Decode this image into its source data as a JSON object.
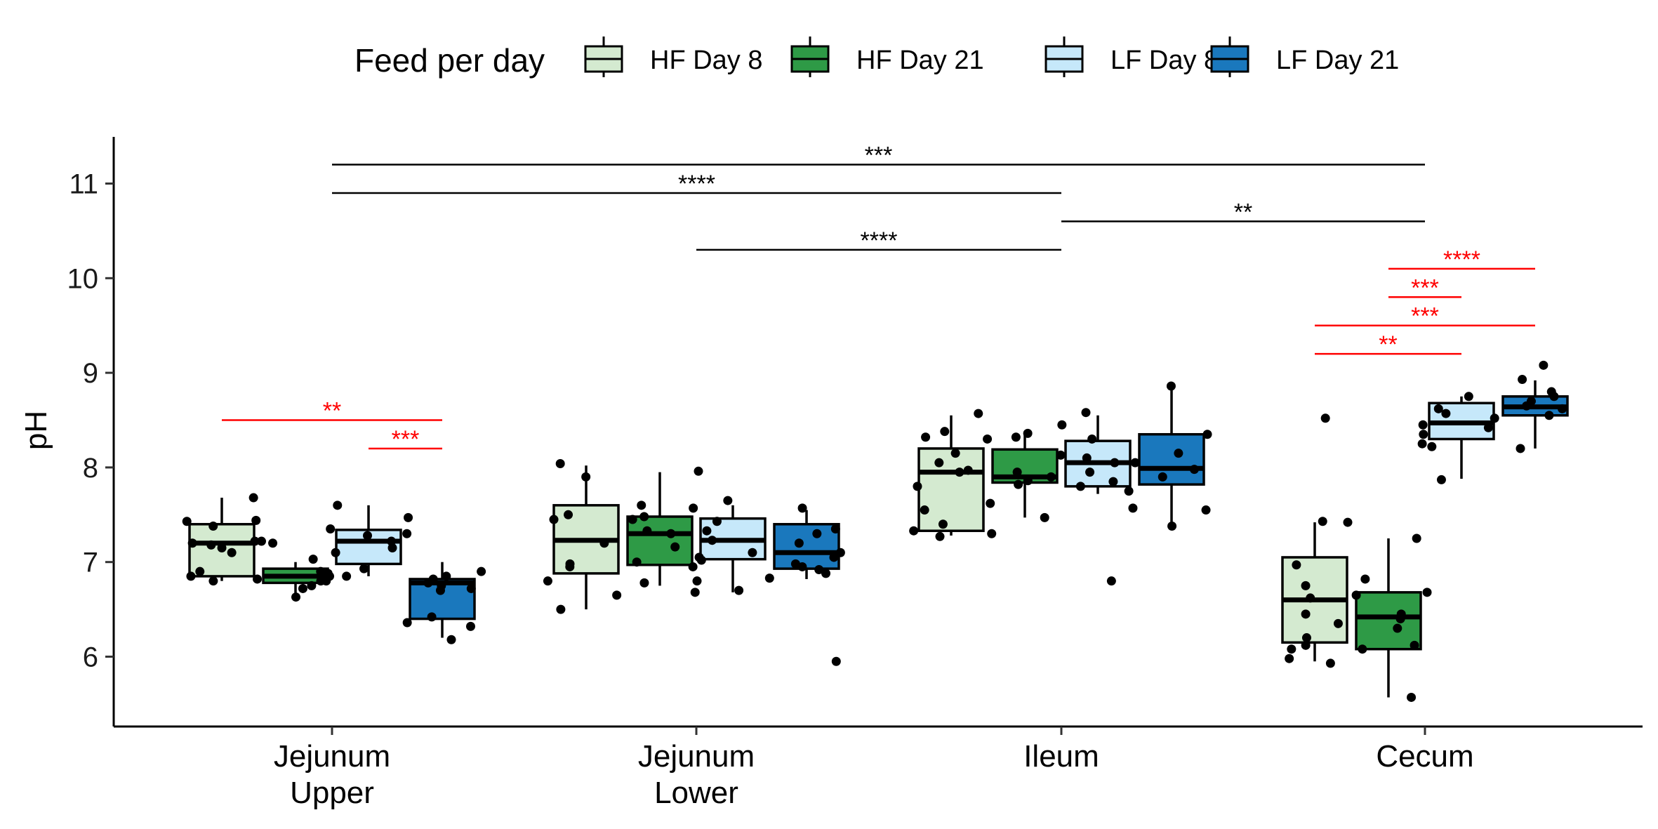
{
  "chart_data": {
    "type": "box",
    "title": "",
    "xlabel": "",
    "ylabel": "pH",
    "ylim": [
      5.3,
      11.5
    ],
    "yticks": [
      6,
      7,
      8,
      9,
      10,
      11
    ],
    "grid": false,
    "legend": {
      "title": "Feed per day",
      "placement": "top"
    },
    "categories": [
      {
        "lines": [
          "Jejunum",
          "Upper"
        ]
      },
      {
        "lines": [
          "Jejunum",
          "Lower"
        ]
      },
      {
        "lines": [
          "Ileum"
        ]
      },
      {
        "lines": [
          "Cecum"
        ]
      }
    ],
    "series": [
      {
        "name": "HF Day 8",
        "color": "#d4ead0",
        "boxes": [
          {
            "min": 6.8,
            "q1": 6.85,
            "median": 7.2,
            "q3": 7.4,
            "max": 7.68,
            "points": [
              7.68,
              7.44,
              7.43,
              7.38,
              7.22,
              7.2,
              7.18,
              7.15,
              7.1,
              6.9,
              6.85,
              6.82,
              6.8
            ]
          },
          {
            "min": 6.5,
            "q1": 6.88,
            "median": 7.23,
            "q3": 7.6,
            "max": 8.02,
            "points": [
              8.04,
              7.9,
              7.5,
              7.45,
              7.2,
              6.98,
              6.95,
              6.8,
              6.65,
              6.5
            ]
          },
          {
            "min": 7.28,
            "q1": 7.33,
            "median": 7.95,
            "q3": 8.2,
            "max": 8.55,
            "points": [
              8.57,
              8.38,
              8.32,
              8.15,
              8.05,
              7.97,
              7.95,
              7.8,
              7.55,
              7.4,
              7.33,
              7.3,
              7.27
            ]
          },
          {
            "min": 5.95,
            "q1": 6.15,
            "median": 6.6,
            "q3": 7.05,
            "max": 7.42,
            "points": [
              8.52,
              7.43,
              7.42,
              6.97,
              6.75,
              6.62,
              6.45,
              6.35,
              6.2,
              6.12,
              6.08,
              5.98,
              5.93
            ]
          }
        ]
      },
      {
        "name": "HF Day 21",
        "color": "#2e9a46",
        "boxes": [
          {
            "min": 6.66,
            "q1": 6.78,
            "median": 6.85,
            "q3": 6.93,
            "max": 7.0,
            "points": [
              7.22,
              7.2,
              7.03,
              6.9,
              6.85,
              6.8,
              6.8,
              6.75,
              6.72,
              6.63
            ]
          },
          {
            "min": 6.75,
            "q1": 6.97,
            "median": 7.3,
            "q3": 7.48,
            "max": 7.95,
            "points": [
              7.96,
              7.6,
              7.48,
              7.45,
              7.33,
              7.3,
              7.16,
              7.0,
              6.95,
              6.8,
              6.78
            ]
          },
          {
            "min": 7.47,
            "q1": 7.84,
            "median": 7.9,
            "q3": 8.19,
            "max": 8.35,
            "points": [
              8.36,
              8.32,
              8.3,
              8.13,
              7.95,
              7.9,
              7.86,
              7.82,
              7.62,
              7.47
            ]
          },
          {
            "min": 5.57,
            "q1": 6.08,
            "median": 6.42,
            "q3": 6.68,
            "max": 7.25,
            "points": [
              7.25,
              6.82,
              6.68,
              6.65,
              6.45,
              6.4,
              6.3,
              6.12,
              6.08,
              5.57
            ]
          }
        ]
      },
      {
        "name": "LF Day 8",
        "color": "#c6e8fa",
        "boxes": [
          {
            "min": 6.85,
            "q1": 6.98,
            "median": 7.22,
            "q3": 7.34,
            "max": 7.6,
            "points": [
              7.6,
              7.47,
              7.35,
              7.3,
              7.28,
              7.22,
              7.15,
              7.1,
              6.93,
              6.88,
              6.85
            ]
          },
          {
            "min": 6.68,
            "q1": 7.03,
            "median": 7.23,
            "q3": 7.46,
            "max": 7.6,
            "points": [
              7.65,
              7.57,
              7.43,
              7.33,
              7.23,
              7.1,
              7.05,
              7.02,
              6.83,
              6.7,
              6.68
            ]
          },
          {
            "min": 7.72,
            "q1": 7.8,
            "median": 8.05,
            "q3": 8.28,
            "max": 8.55,
            "points": [
              8.58,
              8.45,
              8.3,
              8.1,
              8.05,
              8.05,
              7.95,
              7.85,
              7.8,
              7.75,
              6.8
            ]
          },
          {
            "min": 7.88,
            "q1": 8.3,
            "median": 8.47,
            "q3": 8.68,
            "max": 8.75,
            "points": [
              8.75,
              8.62,
              8.57,
              8.45,
              8.42,
              8.35,
              8.25,
              8.22,
              7.87
            ]
          }
        ]
      },
      {
        "name": "LF Day 21",
        "color": "#1a78bd",
        "boxes": [
          {
            "min": 6.2,
            "q1": 6.4,
            "median": 6.78,
            "q3": 6.82,
            "max": 7.0,
            "points": [
              6.9,
              6.85,
              6.82,
              6.78,
              6.75,
              6.72,
              6.7,
              6.42,
              6.36,
              6.32,
              6.18
            ]
          },
          {
            "min": 6.82,
            "q1": 6.93,
            "median": 7.1,
            "q3": 7.4,
            "max": 7.55,
            "points": [
              7.57,
              7.35,
              7.3,
              7.2,
              7.1,
              7.05,
              6.98,
              6.95,
              6.92,
              6.88,
              5.95
            ]
          },
          {
            "min": 7.38,
            "q1": 7.82,
            "median": 7.99,
            "q3": 8.35,
            "max": 8.85,
            "points": [
              8.86,
              8.35,
              8.15,
              7.98,
              7.9,
              7.57,
              7.55,
              7.38
            ]
          },
          {
            "min": 8.2,
            "q1": 8.55,
            "median": 8.64,
            "q3": 8.75,
            "max": 8.92,
            "points": [
              9.08,
              8.93,
              8.8,
              8.75,
              8.7,
              8.65,
              8.62,
              8.55,
              8.52,
              8.2
            ]
          }
        ]
      }
    ],
    "annotations": [
      {
        "from": [
          0,
          null
        ],
        "to": [
          3,
          null
        ],
        "y": 11.2,
        "label": "***",
        "color": "#000000"
      },
      {
        "from": [
          0,
          null
        ],
        "to": [
          2,
          null
        ],
        "y": 10.9,
        "label": "****",
        "color": "#000000"
      },
      {
        "from": [
          2,
          null
        ],
        "to": [
          3,
          null
        ],
        "y": 10.6,
        "label": "**",
        "color": "#000000"
      },
      {
        "from": [
          1,
          null
        ],
        "to": [
          2,
          null
        ],
        "y": 10.3,
        "label": "****",
        "color": "#000000"
      },
      {
        "from": [
          3,
          1
        ],
        "to": [
          3,
          3
        ],
        "y": 10.1,
        "label": "****",
        "color": "#ff0000"
      },
      {
        "from": [
          3,
          1
        ],
        "to": [
          3,
          2
        ],
        "y": 9.8,
        "label": "***",
        "color": "#ff0000"
      },
      {
        "from": [
          3,
          0
        ],
        "to": [
          3,
          3
        ],
        "y": 9.5,
        "label": "***",
        "color": "#ff0000"
      },
      {
        "from": [
          3,
          0
        ],
        "to": [
          3,
          2
        ],
        "y": 9.2,
        "label": "**",
        "color": "#ff0000"
      },
      {
        "from": [
          0,
          0
        ],
        "to": [
          0,
          3
        ],
        "y": 8.5,
        "label": "**",
        "color": "#ff0000"
      },
      {
        "from": [
          0,
          2
        ],
        "to": [
          0,
          3
        ],
        "y": 8.2,
        "label": "***",
        "color": "#ff0000"
      }
    ]
  }
}
